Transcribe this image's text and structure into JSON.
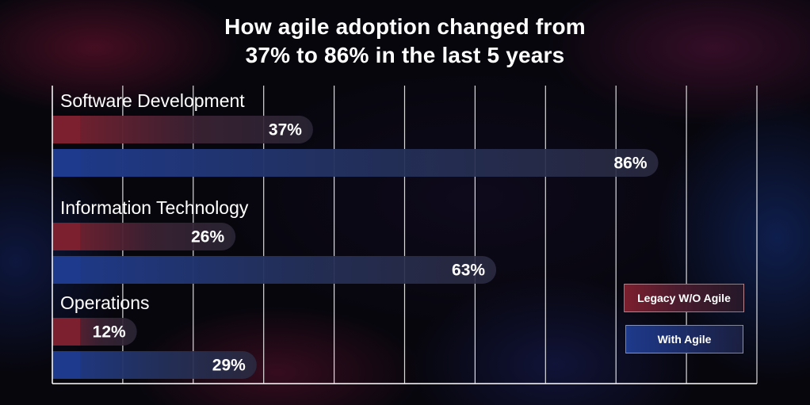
{
  "title_lines": [
    "How agile adoption changed from",
    "37% to 86% in the last 5 years"
  ],
  "legend": {
    "legacy_label": "Legacy W/O Agile",
    "agile_label": "With Agile"
  },
  "colors": {
    "legacy": "#7c1f2e",
    "agile": "#1e3a8c",
    "bar_fade": "#2a2535"
  },
  "chart_data": {
    "type": "bar",
    "orientation": "horizontal",
    "title": "How agile adoption changed from 37% to 86% in the last 5 years",
    "xlim": [
      0,
      100
    ],
    "grid": true,
    "legend_position": "bottom-right",
    "categories": [
      "Software Development",
      "Information Technology",
      "Operations"
    ],
    "series": [
      {
        "name": "Legacy W/O Agile",
        "values": [
          37,
          26,
          12
        ],
        "labels": [
          "37%",
          "26%",
          "12%"
        ]
      },
      {
        "name": "With Agile",
        "values": [
          86,
          63,
          29
        ],
        "labels": [
          "86%",
          "63%",
          "29%"
        ]
      }
    ]
  }
}
